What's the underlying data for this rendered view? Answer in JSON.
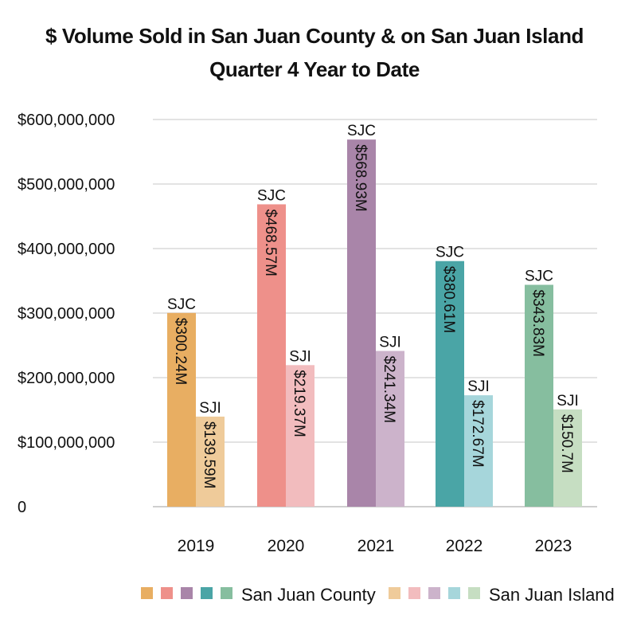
{
  "chart_data": {
    "type": "bar",
    "title": "$ Volume Sold in San Juan County & on San Juan Island",
    "subtitle": "Quarter 4 Year to Date",
    "categories": [
      "2019",
      "2020",
      "2021",
      "2022",
      "2023"
    ],
    "ylim": [
      0,
      600000000
    ],
    "yticks": [
      {
        "value": 0,
        "label": "0"
      },
      {
        "value": 100000000,
        "label": "$100,000,000"
      },
      {
        "value": 200000000,
        "label": "$200,000,000"
      },
      {
        "value": 300000000,
        "label": "$300,000,000"
      },
      {
        "value": 400000000,
        "label": "$400,000,000"
      },
      {
        "value": 500000000,
        "label": "$500,000,000"
      },
      {
        "value": 600000000,
        "label": "$600,000,000"
      }
    ],
    "grid": true,
    "legend_position": "bottom-right",
    "series": [
      {
        "name": "San Juan County",
        "short": "SJC",
        "values": [
          300240000,
          468570000,
          568930000,
          380610000,
          343830000
        ],
        "labels": [
          "$300.24M",
          "$468.57M",
          "$568.93M",
          "$380.61M",
          "$343.83M"
        ],
        "colors": [
          "#E8AE62",
          "#EE908A",
          "#A985A9",
          "#4AA5A6",
          "#86BE9F"
        ]
      },
      {
        "name": "San Juan Island",
        "short": "SJI",
        "values": [
          139590000,
          219370000,
          241340000,
          172670000,
          150700000
        ],
        "labels": [
          "$139.59M",
          "$219.37M",
          "$241.34M",
          "$172.67M",
          "$150.7M"
        ],
        "colors": [
          "#EFCB9A",
          "#F2BCBE",
          "#CCB3CB",
          "#A6D6DB",
          "#C6DEC2"
        ]
      }
    ]
  }
}
